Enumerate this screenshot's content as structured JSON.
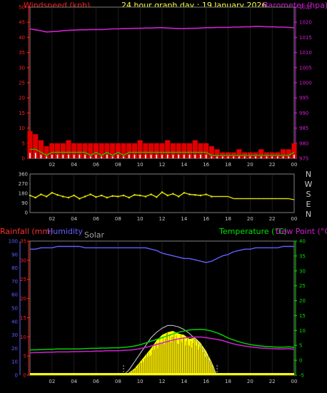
{
  "header": {
    "windspeed": "Windspeed (kph)",
    "title": "24 hour graph day : 19 January 2026",
    "barometer": "Barometer (hpa)"
  },
  "labels2": {
    "rainfall": "Rainfall (mm)",
    "humidity": "Humidity",
    "solar": "Solar",
    "temperature": "Temperature (°C)",
    "dewpoint": "Dew Point (°C)"
  },
  "colors": {
    "bg": "#000000",
    "plot_bg": "#000000",
    "border": "#808080",
    "grid": "#303030",
    "axis_text": "#c8c8c8",
    "wind_left": "#ff2020",
    "baro": "#d020d0",
    "gust": "#e00000",
    "avg_wind": "#00e000",
    "wind_calm": "#ffffff",
    "direction": "#e0e000",
    "rain": "#4060ff",
    "humidity": "#6060ff",
    "solar_fill": "#ffff00",
    "solar_max": "#b0b0b0",
    "temp": "#00d000",
    "dew": "#d020d0",
    "temp_axis": "#00e000"
  },
  "chart_data": [
    {
      "type": "line",
      "name": "wind-barometer",
      "x": [
        0,
        0.5,
        1,
        1.5,
        2,
        2.5,
        3,
        3.5,
        4,
        4.5,
        5,
        5.5,
        6,
        6.5,
        7,
        7.5,
        8,
        8.5,
        9,
        9.5,
        10,
        10.5,
        11,
        11.5,
        12,
        12.5,
        13,
        13.5,
        14,
        14.5,
        15,
        15.5,
        16,
        16.5,
        17,
        17.5,
        18,
        18.5,
        19,
        19.5,
        20,
        20.5,
        21,
        21.5,
        22,
        22.5,
        23,
        23.5,
        24
      ],
      "xtick_labels": [
        "02",
        "04",
        "06",
        "08",
        "10",
        "12",
        "14",
        "16",
        "18",
        "20",
        "22",
        "00"
      ],
      "left_axis": {
        "ylim": [
          0,
          50
        ],
        "ticks": [
          0,
          5,
          10,
          15,
          20,
          25,
          30,
          35,
          40,
          45,
          50
        ]
      },
      "right_axis": {
        "ylim": [
          975,
          1025
        ],
        "ticks": [
          975,
          980,
          985,
          990,
          995,
          1000,
          1005,
          1010,
          1015,
          1020,
          1025
        ]
      },
      "series": [
        {
          "name": "Barometer (hpa)",
          "axis": "right",
          "values": [
            1017.8,
            1017.5,
            1017.2,
            1016.8,
            1016.9,
            1017.0,
            1017.2,
            1017.3,
            1017.4,
            1017.5,
            1017.5,
            1017.6,
            1017.6,
            1017.6,
            1017.7,
            1017.8,
            1017.8,
            1017.9,
            1017.9,
            1018.0,
            1018.0,
            1018.1,
            1018.1,
            1018.2,
            1018.2,
            1018.1,
            1018.0,
            1017.9,
            1017.9,
            1018.0,
            1018.0,
            1018.1,
            1018.2,
            1018.2,
            1018.3,
            1018.3,
            1018.3,
            1018.4,
            1018.4,
            1018.5,
            1018.5,
            1018.6,
            1018.6,
            1018.5,
            1018.5,
            1018.4,
            1018.4,
            1018.3,
            1018.2
          ]
        },
        {
          "name": "Windspeed (kph)",
          "axis": "left",
          "values": [
            9,
            8,
            6,
            4,
            5,
            5,
            5,
            6,
            5,
            5,
            5,
            5,
            5,
            5,
            5,
            5,
            5,
            5,
            5,
            5,
            6,
            5,
            5,
            5,
            5,
            6,
            5,
            5,
            5,
            5,
            6,
            5,
            5,
            4,
            3,
            2,
            2,
            2,
            3,
            2,
            2,
            2,
            3,
            2,
            2,
            2,
            3,
            3,
            5
          ]
        },
        {
          "name": "Average windspeed",
          "axis": "left",
          "values": [
            3,
            3,
            2,
            1,
            2,
            2,
            2,
            2,
            2,
            2,
            2,
            1,
            2,
            1,
            2,
            1,
            2,
            1,
            2,
            2,
            2,
            2,
            2,
            2,
            2,
            2,
            2,
            2,
            2,
            2,
            2,
            2,
            2,
            1,
            1,
            1,
            1,
            1,
            1,
            1,
            1,
            1,
            1,
            1,
            1,
            1,
            1,
            1,
            2
          ]
        }
      ]
    },
    {
      "type": "scatter",
      "name": "wind-direction",
      "x": [
        0,
        0.5,
        1,
        1.5,
        2,
        2.5,
        3,
        3.5,
        4,
        4.5,
        5,
        5.5,
        6,
        6.5,
        7,
        7.5,
        8,
        8.5,
        9,
        9.5,
        10,
        10.5,
        11,
        11.5,
        12,
        12.5,
        13,
        13.5,
        14,
        14.5,
        15,
        15.5,
        16,
        16.5,
        17,
        17.5,
        18,
        18.5,
        19,
        19.5,
        20,
        20.5,
        21,
        21.5,
        22,
        22.5,
        23,
        23.5,
        24
      ],
      "ylim": [
        0,
        360
      ],
      "ticks": [
        0,
        90,
        180,
        270,
        360
      ],
      "compass_labels": [
        "N",
        "W",
        "S",
        "E",
        "N"
      ],
      "values": [
        160,
        140,
        170,
        150,
        185,
        165,
        150,
        140,
        160,
        130,
        150,
        170,
        145,
        160,
        140,
        155,
        150,
        160,
        140,
        165,
        160,
        150,
        170,
        145,
        190,
        160,
        175,
        150,
        185,
        170,
        165,
        160,
        170,
        150,
        150,
        150,
        150,
        130,
        130,
        130,
        130,
        130,
        130,
        130,
        130,
        130,
        130,
        130,
        120
      ]
    },
    {
      "type": "line",
      "name": "temperature-humidity",
      "x": [
        0,
        0.5,
        1,
        1.5,
        2,
        2.5,
        3,
        3.5,
        4,
        4.5,
        5,
        5.5,
        6,
        6.5,
        7,
        7.5,
        8,
        8.5,
        9,
        9.5,
        10,
        10.5,
        11,
        11.5,
        12,
        12.5,
        13,
        13.5,
        14,
        14.5,
        15,
        15.5,
        16,
        16.5,
        17,
        17.5,
        18,
        18.5,
        19,
        19.5,
        20,
        20.5,
        21,
        21.5,
        22,
        22.5,
        23,
        23.5,
        24
      ],
      "xtick_labels": [
        "02",
        "04",
        "06",
        "08",
        "10",
        "12",
        "14",
        "16",
        "18",
        "20",
        "22",
        "00"
      ],
      "left_axis_humidity": {
        "ylim": [
          0,
          100
        ],
        "ticks": [
          0,
          10,
          20,
          30,
          40,
          50,
          60,
          70,
          80,
          90,
          100
        ]
      },
      "left_axis_rain": {
        "ylim": [
          0,
          35
        ],
        "ticks": [
          0,
          5,
          10,
          15,
          20,
          25,
          30,
          35
        ]
      },
      "right_axis_temp": {
        "ylim": [
          -5,
          40
        ],
        "ticks": [
          -5,
          0,
          5,
          10,
          15,
          20,
          25,
          30,
          35,
          40
        ]
      },
      "series": [
        {
          "name": "Humidity",
          "axis": "humidity",
          "values": [
            94,
            94,
            95,
            95,
            95,
            96,
            96,
            96,
            96,
            96,
            95,
            95,
            95,
            95,
            95,
            95,
            95,
            95,
            95,
            95,
            95,
            95,
            94,
            93,
            91,
            90,
            89,
            88,
            87,
            87,
            86,
            85,
            84,
            85,
            87,
            89,
            90,
            92,
            93,
            94,
            94,
            95,
            95,
            95,
            95,
            95,
            96,
            96,
            96
          ]
        },
        {
          "name": "Temperature (°C)",
          "axis": "temp",
          "values": [
            3.5,
            3.5,
            3.6,
            3.7,
            3.7,
            3.8,
            3.8,
            3.8,
            3.8,
            3.8,
            3.9,
            4.0,
            4.0,
            4.1,
            4.1,
            4.2,
            4.2,
            4.3,
            4.5,
            4.8,
            5.2,
            5.8,
            6.4,
            7.0,
            7.6,
            8.2,
            8.8,
            9.4,
            9.8,
            10.2,
            10.3,
            10.4,
            10.2,
            9.8,
            9.2,
            8.4,
            7.5,
            6.8,
            6.2,
            5.7,
            5.3,
            5.0,
            4.8,
            4.6,
            4.5,
            4.4,
            4.4,
            4.5,
            4.3
          ]
        },
        {
          "name": "Dew Point (°C)",
          "axis": "temp",
          "values": [
            2.5,
            2.6,
            2.6,
            2.7,
            2.7,
            2.8,
            2.8,
            2.8,
            2.9,
            2.9,
            3.0,
            3.0,
            3.1,
            3.1,
            3.2,
            3.2,
            3.2,
            3.3,
            3.4,
            3.6,
            3.9,
            4.3,
            4.8,
            5.3,
            5.8,
            6.3,
            6.8,
            7.2,
            7.5,
            7.7,
            7.8,
            7.8,
            7.6,
            7.3,
            7.0,
            6.6,
            6.0,
            5.5,
            5.1,
            4.8,
            4.5,
            4.3,
            4.1,
            4.0,
            3.9,
            3.8,
            3.8,
            3.9,
            3.7
          ]
        },
        {
          "name": "Rainfall (mm)",
          "axis": "rain",
          "values": [
            0,
            0,
            0,
            0,
            0,
            0,
            0,
            0,
            0,
            0,
            0,
            0,
            0,
            0,
            0,
            0,
            0,
            0,
            0,
            0,
            0,
            0,
            0,
            0,
            0,
            0,
            0,
            0,
            0,
            0,
            0,
            0,
            0,
            0,
            0,
            0,
            0,
            0,
            0,
            0,
            0,
            0,
            0,
            0,
            0,
            0,
            0,
            0,
            0
          ]
        }
      ],
      "solar": {
        "name": "Solar",
        "axis": "humidity",
        "x": [
          8.5,
          9,
          9.5,
          10,
          10.5,
          11,
          11.5,
          12,
          12.5,
          13,
          13.5,
          14,
          14.5,
          15,
          15.5,
          16,
          16.5,
          17
        ],
        "values": [
          0,
          2,
          5,
          10,
          15,
          20,
          26,
          30,
          32,
          33,
          31,
          30,
          27,
          28,
          24,
          18,
          10,
          0
        ],
        "max_values": [
          0,
          4,
          10,
          16,
          22,
          28,
          32,
          35,
          37,
          37,
          36,
          34,
          31,
          27,
          22,
          15,
          7,
          0
        ]
      }
    }
  ]
}
